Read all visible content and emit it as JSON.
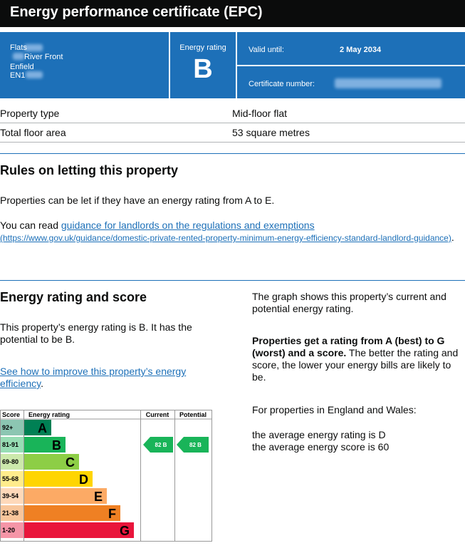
{
  "header": {
    "title": "Energy performance certificate (EPC)"
  },
  "summary": {
    "address": [
      "Flats",
      "River Front",
      "Enfield",
      "EN1"
    ],
    "rating_label": "Energy rating",
    "rating": "B",
    "valid_until_label": "Valid until:",
    "valid_until": "2 May 2034",
    "certificate_number_label": "Certificate number:"
  },
  "property": {
    "rows": [
      [
        "Property type",
        "Mid-floor flat"
      ],
      [
        "Total floor area",
        "53 square metres"
      ]
    ]
  },
  "letting": {
    "heading": "Rules on letting this property",
    "text": "Properties can be let if they have an energy rating from A to E.",
    "read_before": "You can read ",
    "read_link": "guidance for landlords on the regulations and exemptions",
    "read_url": "(https://www.gov.uk/guidance/domestic-private-rented-property-minimum-energy-efficiency-standard-landlord-guidance)",
    "read_after": "."
  },
  "rating_section": {
    "heading": "Energy rating and score",
    "text": "This property’s energy rating is B. It has the potential to be B.",
    "improve_link": "See how to improve this property’s energy efficiency",
    "improve_after": ".",
    "graph_intro": "The graph shows this property’s current and potential energy rating.",
    "explain_bold": "Properties get a rating from A (best) to G (worst) and a score.",
    "explain": " The better the rating and score, the lower your energy bills are likely to be.",
    "region": "For properties in England and Wales:",
    "average_rating": "the average energy rating is D",
    "average_score": "the average energy score is 60"
  },
  "epc_chart": {
    "headers": [
      "Score",
      "Energy rating",
      "Current",
      "Potential"
    ],
    "bands": [
      {
        "score": "92+",
        "letter": "A",
        "color": "#008054"
      },
      {
        "score": "81-91",
        "letter": "B",
        "color": "#19b459"
      },
      {
        "score": "69-80",
        "letter": "C",
        "color": "#8dce46"
      },
      {
        "score": "55-68",
        "letter": "D",
        "color": "#ffd500"
      },
      {
        "score": "39-54",
        "letter": "E",
        "color": "#fcaa65"
      },
      {
        "score": "21-38",
        "letter": "F",
        "color": "#ef8023"
      },
      {
        "score": "1-20",
        "letter": "G",
        "color": "#e9153b"
      }
    ],
    "current": {
      "score": 82,
      "rating": "B"
    },
    "potential": {
      "score": 82,
      "rating": "B"
    }
  }
}
